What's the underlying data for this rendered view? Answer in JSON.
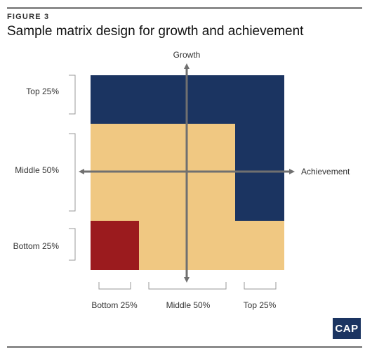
{
  "figure_label": "FIGURE 3",
  "title": "Sample matrix design for growth and achievement",
  "axes": {
    "vertical_label": "Growth",
    "horizontal_label": "Achievement"
  },
  "row_labels": [
    "Top 25%",
    "Middle 50%",
    "Bottom 25%"
  ],
  "column_labels": [
    "Bottom 25%",
    "Middle 50%",
    "Top 25%"
  ],
  "colors": {
    "navy": "#1b3461",
    "tan": "#f0c882",
    "red": "#9b1b1e",
    "axis": "#707070"
  },
  "logo": "CAP"
}
